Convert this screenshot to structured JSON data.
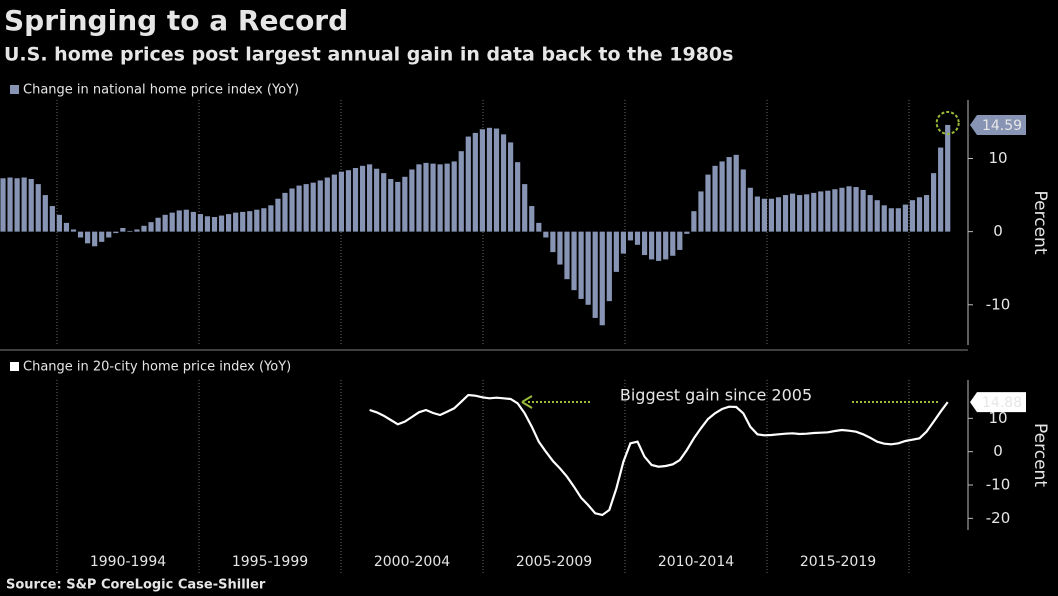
{
  "header": {
    "title": "Springing to a Record",
    "subtitle": "U.S. home prices post largest annual gain in data back to the 1980s"
  },
  "periods": [
    "1990-1994",
    "1995-1999",
    "2000-2004",
    "2005-2009",
    "2010-2014",
    "2015-2019"
  ],
  "source": "Source: S&P CoreLogic Case-Shiller",
  "chart_data": [
    {
      "type": "bar",
      "y_label": "Percent",
      "ylim": [
        -15.5,
        18
      ],
      "yticks": [
        10,
        0,
        -10
      ],
      "series": [
        {
          "name": "Change in national home price index (YoY)",
          "color": "#8794b4",
          "values": [
            7.3,
            7.4,
            7.3,
            7.4,
            7.2,
            6.5,
            5,
            3.5,
            2.3,
            1.2,
            0.3,
            -0.8,
            -1.6,
            -2,
            -1.4,
            -0.8,
            -0.2,
            0.5,
            0.1,
            0.3,
            0.8,
            1.3,
            1.9,
            2.3,
            2.6,
            2.9,
            3,
            2.7,
            2.4,
            2.1,
            2,
            2.2,
            2.4,
            2.6,
            2.7,
            2.8,
            3,
            3.2,
            3.6,
            4.5,
            5.3,
            5.9,
            6.3,
            6.5,
            6.7,
            7,
            7.4,
            7.8,
            8.2,
            8.4,
            8.7,
            9,
            9.2,
            8.6,
            8,
            7.2,
            6.8,
            7.5,
            8.5,
            9.2,
            9.4,
            9.3,
            9.2,
            9.3,
            9.6,
            11,
            13,
            13.5,
            14,
            14.2,
            14.1,
            13.3,
            12.2,
            9.5,
            6.5,
            3.5,
            1.2,
            -0.8,
            -2.8,
            -4.5,
            -6.5,
            -8,
            -9.2,
            -10,
            -11.8,
            -12.8,
            -9.5,
            -5.5,
            -3,
            -1.2,
            -1.8,
            -3.2,
            -3.8,
            -4,
            -3.8,
            -3.3,
            -2.5,
            -0.3,
            2.8,
            5.5,
            7.8,
            9,
            9.6,
            10.2,
            10.5,
            8.5,
            6,
            4.8,
            4.5,
            4.5,
            4.7,
            5,
            5.2,
            5,
            5.1,
            5.3,
            5.5,
            5.6,
            5.8,
            6,
            6.2,
            6.1,
            5.7,
            5,
            4.3,
            3.6,
            3.2,
            3.2,
            3.7,
            4.3,
            4.7,
            5,
            8,
            11.5,
            14.59
          ]
        }
      ]
    },
    {
      "type": "line",
      "y_label": "Percent",
      "ylim": [
        -23.5,
        21.5
      ],
      "yticks": [
        10,
        0,
        -10,
        -20
      ],
      "annotation": "Biggest gain since 2005",
      "annotation_color": "#9bbb3a",
      "series": [
        {
          "name": "Change in 20-city home price index (YoY)",
          "color": "#ffffff",
          "values": [
            null,
            null,
            null,
            null,
            null,
            null,
            null,
            null,
            null,
            null,
            null,
            null,
            null,
            null,
            null,
            null,
            null,
            null,
            null,
            null,
            null,
            null,
            null,
            null,
            null,
            null,
            null,
            null,
            null,
            null,
            null,
            null,
            null,
            null,
            null,
            null,
            null,
            null,
            null,
            null,
            null,
            null,
            null,
            null,
            null,
            null,
            null,
            null,
            null,
            null,
            null,
            null,
            12.5,
            11.8,
            10.8,
            9.5,
            8.2,
            9,
            10.4,
            11.8,
            12.5,
            11.6,
            11,
            12,
            13,
            15,
            17,
            16.8,
            16.3,
            16,
            16.2,
            16,
            15.8,
            14.5,
            11.5,
            7.5,
            3,
            0,
            -2.8,
            -5,
            -7.5,
            -10.5,
            -13.8,
            -16,
            -18.5,
            -19,
            -17.5,
            -11,
            -3,
            2.5,
            3,
            -1.5,
            -4,
            -4.5,
            -4.3,
            -3.8,
            -2.5,
            0.5,
            4,
            7,
            9.8,
            11.5,
            12.8,
            13.5,
            13.4,
            11.5,
            7.5,
            5.2,
            4.9,
            5,
            5.2,
            5.4,
            5.5,
            5.3,
            5.4,
            5.6,
            5.7,
            5.8,
            6.2,
            6.5,
            6.3,
            6,
            5.2,
            4.2,
            3,
            2.4,
            2.2,
            2.5,
            3.2,
            3.6,
            4,
            6,
            9,
            12,
            14.88
          ]
        }
      ]
    }
  ]
}
